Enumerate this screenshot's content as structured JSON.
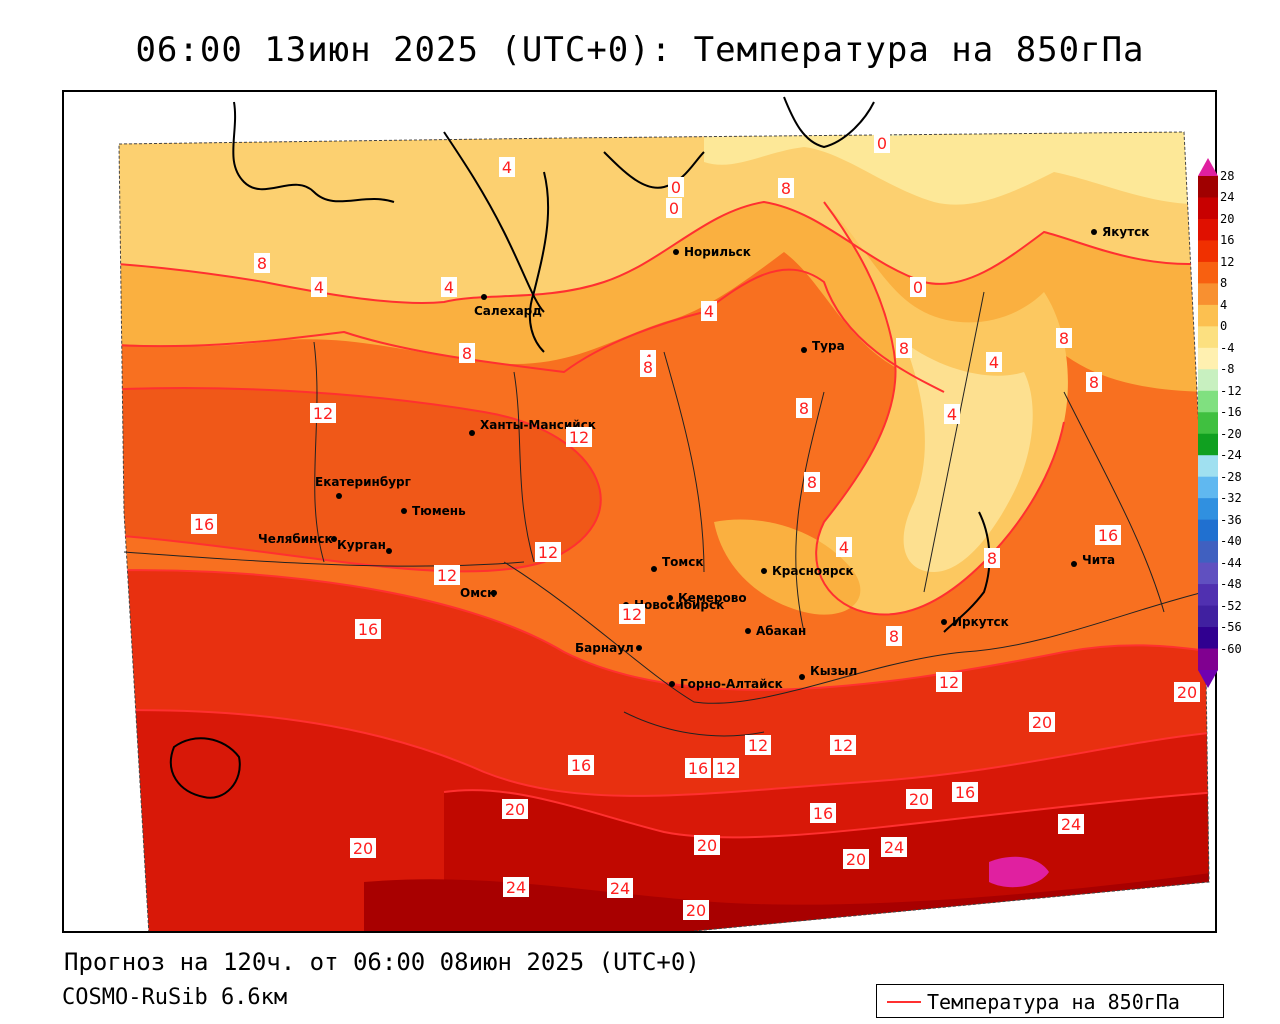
{
  "title": "06:00 13июн 2025 (UTC+0): Температура на 850гПа",
  "footer": {
    "forecast": "Прогноз на 120ч. от 06:00 08июн 2025 (UTC+0)",
    "model": "COSMO-RuSib 6.6км"
  },
  "legend": {
    "label": "Температура на 850гПа",
    "line_color": "#ff3030"
  },
  "colorbar": {
    "labels": [
      "28",
      "24",
      "20",
      "16",
      "12",
      "8",
      "4",
      "0",
      "-4",
      "-8",
      "-12",
      "-16",
      "-20",
      "-24",
      "-28",
      "-32",
      "-36",
      "-40",
      "-44",
      "-48",
      "-52",
      "-56",
      "-60"
    ],
    "colors": [
      "#a00000",
      "#c80000",
      "#e01000",
      "#f03000",
      "#f86010",
      "#f89030",
      "#fcc050",
      "#fce080",
      "#fff0b0",
      "#c8f0c0",
      "#80e080",
      "#40c040",
      "#10a020",
      "#a0e0f0",
      "#60b8f0",
      "#3090e0",
      "#2070d0",
      "#4060c0",
      "#6050c0",
      "#5030b0",
      "#4020a0",
      "#300090",
      "#800090"
    ],
    "top_arrow_color": "#e020a0",
    "bottom_arrow_color": "#7000b0"
  },
  "cities": [
    {
      "name": "Норильск"
    },
    {
      "name": "Якутск"
    },
    {
      "name": "Салехард"
    },
    {
      "name": "Тура"
    },
    {
      "name": "Ханты-Мансийск"
    },
    {
      "name": "Екатеринбург"
    },
    {
      "name": "Тюмень"
    },
    {
      "name": "Челябинск"
    },
    {
      "name": "Курган"
    },
    {
      "name": "Омск"
    },
    {
      "name": "Новосибирск"
    },
    {
      "name": "Томск"
    },
    {
      "name": "Кемерово"
    },
    {
      "name": "Красноярск"
    },
    {
      "name": "Абакан"
    },
    {
      "name": "Барнаул"
    },
    {
      "name": "Горно-Алтайск"
    },
    {
      "name": "Кызыл"
    },
    {
      "name": "Иркутск"
    },
    {
      "name": "Чита"
    }
  ],
  "contour_labels": [
    "4",
    "0",
    "0",
    "8",
    "4",
    "0",
    "8",
    "8",
    "4",
    "4",
    "8",
    "4",
    "0",
    "4",
    "8",
    "8",
    "8",
    "4",
    "12",
    "12",
    "8",
    "8",
    "16",
    "12",
    "4",
    "12",
    "12",
    "16",
    "16",
    "8",
    "8",
    "12",
    "20",
    "20",
    "16",
    "16",
    "12",
    "12",
    "12",
    "20",
    "20",
    "16",
    "16",
    "20",
    "24",
    "20",
    "20",
    "24",
    "24",
    "24",
    "20"
  ]
}
